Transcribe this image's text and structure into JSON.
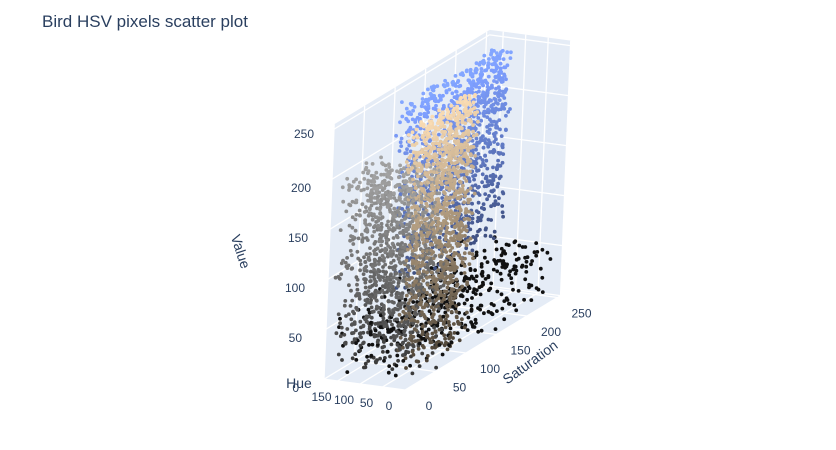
{
  "chart_data": {
    "type": "scatter3d",
    "title": "Bird HSV pixels scatter plot",
    "axes": {
      "x": {
        "label": "Hue",
        "range": [
          0,
          180
        ],
        "ticks": [
          "0",
          "50",
          "100",
          "150"
        ]
      },
      "y": {
        "label": "Saturation",
        "range": [
          0,
          255
        ],
        "ticks": [
          "0",
          "50",
          "100",
          "150",
          "200",
          "250"
        ]
      },
      "z": {
        "label": "Value",
        "range": [
          0,
          255
        ],
        "ticks": [
          "0",
          "50",
          "100",
          "150",
          "200",
          "250"
        ]
      }
    },
    "grid": true,
    "colors": {
      "pane": "#e5ecf6",
      "gridline": "#ffffff",
      "text": "#2a3f5f"
    },
    "marker_color": "pixel RGB color",
    "clusters": [
      {
        "hue": [
          5,
          35
        ],
        "saturation": [
          10,
          110
        ],
        "value": [
          10,
          255
        ],
        "color": "#c8b090"
      },
      {
        "hue": [
          95,
          125
        ],
        "saturation": [
          60,
          230
        ],
        "value": [
          60,
          255
        ],
        "color": "#6a86d8"
      },
      {
        "hue": [
          10,
          170
        ],
        "saturation": [
          0,
          70
        ],
        "value": [
          0,
          200
        ],
        "color": "#9a9a9a"
      },
      {
        "hue": [
          0,
          180
        ],
        "saturation": [
          0,
          255
        ],
        "value": [
          0,
          60
        ],
        "color": "#111111"
      }
    ]
  }
}
